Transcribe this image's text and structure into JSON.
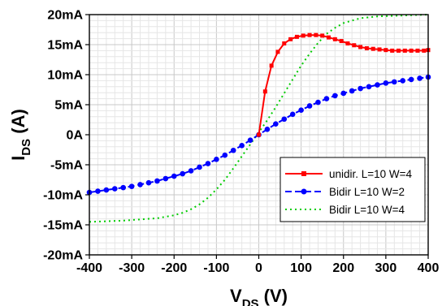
{
  "chart_data": {
    "type": "line",
    "xlabel": {
      "main": "V",
      "sub": "DS",
      "unit": " (V)"
    },
    "ylabel": {
      "main": "I",
      "sub": "DS",
      "unit": " (A)"
    },
    "xlim": [
      -400,
      400
    ],
    "ylim": [
      -20,
      20
    ],
    "y_unit": "mA",
    "x_ticks": [
      -400,
      -300,
      -200,
      -100,
      0,
      100,
      200,
      300,
      400
    ],
    "y_tick_labels": [
      "20mA",
      "15mA",
      "10mA",
      "5mA",
      "0A",
      "-5mA",
      "-10mA",
      "-15mA",
      "-20mA"
    ],
    "y_tick_values": [
      20,
      15,
      10,
      5,
      0,
      -5,
      -10,
      -15,
      -20
    ],
    "grid": true,
    "legend_position": "bottom-right",
    "series": [
      {
        "name": "unidir. L=10 W=4",
        "color": "#ff0000",
        "line": "solid",
        "marker": "square",
        "x": [
          0,
          15,
          30,
          45,
          60,
          75,
          90,
          105,
          120,
          135,
          150,
          165,
          180,
          195,
          210,
          225,
          240,
          255,
          270,
          285,
          300,
          315,
          330,
          345,
          360,
          375,
          390,
          400
        ],
        "y": [
          0,
          7.2,
          11.5,
          13.8,
          15.2,
          15.9,
          16.3,
          16.5,
          16.6,
          16.6,
          16.5,
          16.2,
          15.9,
          15.6,
          15.2,
          14.9,
          14.6,
          14.4,
          14.3,
          14.2,
          14.1,
          14.0,
          14.0,
          14.0,
          14.0,
          14.0,
          14.0,
          14.1
        ]
      },
      {
        "name": "Bidir L=10 W=2",
        "color": "#0000ff",
        "line": "dash",
        "marker": "circle",
        "x": [
          -400,
          -380,
          -360,
          -340,
          -320,
          -300,
          -280,
          -260,
          -240,
          -220,
          -200,
          -180,
          -160,
          -140,
          -120,
          -100,
          -80,
          -60,
          -40,
          -20,
          0,
          20,
          40,
          60,
          80,
          100,
          120,
          140,
          160,
          180,
          200,
          220,
          240,
          260,
          280,
          300,
          320,
          340,
          360,
          380,
          400
        ],
        "y": [
          -9.6,
          -9.4,
          -9.2,
          -9.0,
          -8.8,
          -8.6,
          -8.3,
          -8.0,
          -7.7,
          -7.3,
          -6.9,
          -6.5,
          -6.0,
          -5.4,
          -4.8,
          -4.1,
          -3.4,
          -2.6,
          -1.8,
          -0.9,
          0,
          0.9,
          1.8,
          2.6,
          3.4,
          4.1,
          4.8,
          5.4,
          6.0,
          6.5,
          6.9,
          7.3,
          7.7,
          8.0,
          8.3,
          8.6,
          8.8,
          9.0,
          9.2,
          9.4,
          9.6
        ]
      },
      {
        "name": "Bidir L=10 W=4",
        "color": "#00cc00",
        "line": "dot",
        "marker": "none",
        "x": [
          -400,
          -360,
          -320,
          -280,
          -240,
          -200,
          -180,
          -160,
          -140,
          -120,
          -100,
          -80,
          -60,
          -40,
          -20,
          0,
          20,
          40,
          60,
          80,
          100,
          120,
          140,
          160,
          180,
          200,
          240,
          280,
          320,
          360,
          400
        ],
        "y": [
          -14.5,
          -14.4,
          -14.3,
          -14.1,
          -13.9,
          -13.4,
          -13.0,
          -12.4,
          -11.6,
          -10.5,
          -9.1,
          -7.5,
          -5.6,
          -3.6,
          -1.6,
          0.4,
          2.4,
          4.6,
          6.9,
          9.2,
          11.5,
          13.5,
          15.3,
          16.8,
          17.8,
          18.6,
          19.4,
          19.7,
          19.8,
          19.9,
          20.0
        ]
      }
    ]
  }
}
